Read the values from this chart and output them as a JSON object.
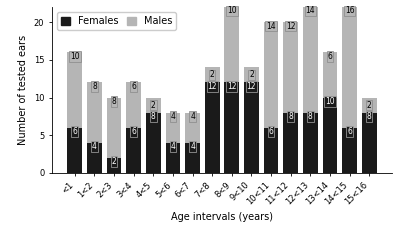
{
  "categories": [
    "<1",
    "1<2",
    "2<3",
    "3<4",
    "4<5",
    "5<6",
    "6<7",
    "7<8",
    "8<9",
    "9<10",
    "10<11",
    "11<12",
    "12<13",
    "13<14",
    "14<15",
    "15<16"
  ],
  "females": [
    6,
    4,
    2,
    6,
    8,
    4,
    4,
    12,
    12,
    12,
    6,
    8,
    8,
    10,
    6,
    8
  ],
  "males": [
    10,
    8,
    8,
    6,
    2,
    4,
    4,
    2,
    10,
    2,
    14,
    12,
    14,
    6,
    16,
    2
  ],
  "female_color": "#1a1a1a",
  "male_color": "#b5b5b5",
  "xlabel": "Age intervals (years)",
  "ylabel": "Number of tested ears",
  "ylim": [
    0,
    22
  ],
  "yticks": [
    0,
    5,
    10,
    15,
    20
  ],
  "legend_labels": [
    "Females",
    "Males"
  ],
  "label_fontsize": 7,
  "tick_fontsize": 6,
  "annotation_fontsize": 5.5,
  "bar_width": 0.75
}
